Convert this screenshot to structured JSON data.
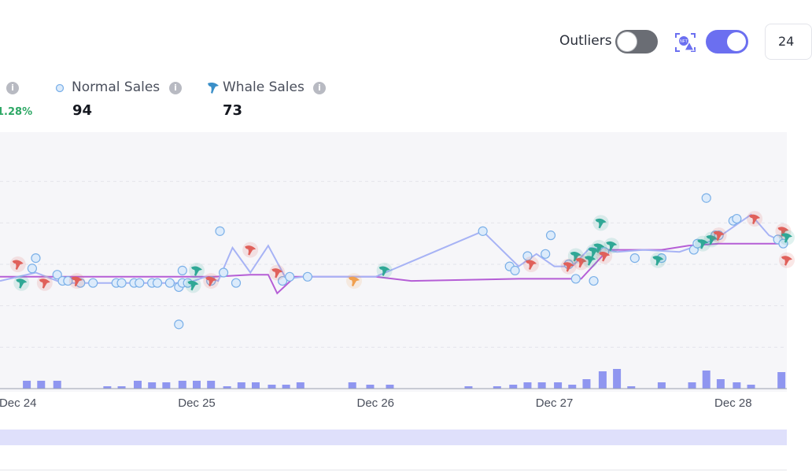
{
  "controls": {
    "outliers_label": "Outliers",
    "outliers_enabled": false,
    "nft_toggle_enabled": true,
    "range_label": "24"
  },
  "stats": {
    "change_pct": "1.28%",
    "normal_sales_label": "Normal Sales",
    "normal_sales_value": "94",
    "whale_sales_label": "Whale Sales",
    "whale_sales_value": "73",
    "info_glyph": "i"
  },
  "colors": {
    "avg_line": "#a7b3f5",
    "floor_line": "#b55ed6",
    "normal_dot": "#7bb0e8",
    "whale_teal": "#2fa896",
    "whale_red": "#e0605a",
    "whale_orange": "#f0a050",
    "volume_bar": "#8f96f0",
    "accent": "#6b6ff0",
    "positive": "#2fa866"
  },
  "chart_data": {
    "type": "scatter",
    "x_ticks": [
      "Dec 24",
      "Dec 25",
      "Dec 26",
      "Dec 27",
      "Dec 28"
    ],
    "x_domain_days": [
      -0.1,
      4.3
    ],
    "y_domain": [
      0,
      6
    ],
    "grid": true,
    "normal_sales": [
      [
        0.08,
        2.9
      ],
      [
        0.1,
        3.15
      ],
      [
        0.22,
        2.75
      ],
      [
        0.25,
        2.6
      ],
      [
        0.28,
        2.6
      ],
      [
        0.35,
        2.55
      ],
      [
        0.42,
        2.55
      ],
      [
        0.55,
        2.55
      ],
      [
        0.58,
        2.55
      ],
      [
        0.65,
        2.55
      ],
      [
        0.68,
        2.55
      ],
      [
        0.75,
        2.55
      ],
      [
        0.78,
        2.55
      ],
      [
        0.85,
        2.55
      ],
      [
        0.9,
        2.45
      ],
      [
        0.92,
        2.55
      ],
      [
        0.95,
        2.55
      ],
      [
        0.9,
        1.55
      ],
      [
        0.92,
        2.85
      ],
      [
        1.08,
        2.6
      ],
      [
        1.13,
        3.8
      ],
      [
        1.15,
        2.8
      ],
      [
        1.22,
        2.55
      ],
      [
        1.48,
        2.6
      ],
      [
        1.52,
        2.7
      ],
      [
        1.62,
        2.7
      ],
      [
        2.6,
        3.8
      ],
      [
        2.75,
        2.95
      ],
      [
        2.78,
        2.85
      ],
      [
        2.85,
        3.2
      ],
      [
        2.95,
        3.25
      ],
      [
        2.98,
        3.7
      ],
      [
        3.08,
        3.0
      ],
      [
        3.12,
        2.65
      ],
      [
        3.22,
        2.6
      ],
      [
        3.28,
        3.3
      ],
      [
        3.45,
        3.15
      ],
      [
        3.6,
        3.15
      ],
      [
        3.78,
        3.35
      ],
      [
        3.8,
        3.5
      ],
      [
        3.85,
        4.6
      ],
      [
        3.9,
        3.7
      ],
      [
        3.92,
        3.7
      ],
      [
        4.0,
        4.05
      ],
      [
        4.02,
        4.1
      ],
      [
        4.25,
        3.6
      ],
      [
        4.28,
        3.5
      ]
    ],
    "whale_sales": [
      [
        0.0,
        3.0,
        "red"
      ],
      [
        0.02,
        2.55,
        "teal"
      ],
      [
        0.15,
        2.55,
        "red"
      ],
      [
        0.33,
        2.6,
        "red"
      ],
      [
        0.98,
        2.5,
        "teal"
      ],
      [
        1.0,
        2.85,
        "teal"
      ],
      [
        1.08,
        2.6,
        "red"
      ],
      [
        1.3,
        3.35,
        "red"
      ],
      [
        1.45,
        2.8,
        "red"
      ],
      [
        1.88,
        2.6,
        "orange"
      ],
      [
        2.05,
        2.85,
        "teal"
      ],
      [
        2.87,
        3.0,
        "red"
      ],
      [
        3.08,
        2.95,
        "red"
      ],
      [
        3.12,
        3.2,
        "teal"
      ],
      [
        3.15,
        3.05,
        "red"
      ],
      [
        3.2,
        3.1,
        "teal"
      ],
      [
        3.22,
        3.3,
        "teal"
      ],
      [
        3.25,
        3.4,
        "teal"
      ],
      [
        3.26,
        4.0,
        "teal"
      ],
      [
        3.28,
        3.2,
        "red"
      ],
      [
        3.32,
        3.45,
        "teal"
      ],
      [
        3.58,
        3.1,
        "teal"
      ],
      [
        3.83,
        3.5,
        "teal"
      ],
      [
        3.88,
        3.6,
        "teal"
      ],
      [
        3.92,
        3.7,
        "red"
      ],
      [
        4.12,
        4.1,
        "red"
      ],
      [
        4.28,
        3.8,
        "red"
      ],
      [
        4.3,
        3.65,
        "teal"
      ],
      [
        4.3,
        3.1,
        "red"
      ]
    ],
    "average_line": [
      [
        -0.1,
        2.6
      ],
      [
        0.1,
        2.8
      ],
      [
        0.25,
        2.55
      ],
      [
        0.95,
        2.55
      ],
      [
        1.05,
        2.7
      ],
      [
        1.12,
        2.6
      ],
      [
        1.2,
        3.4
      ],
      [
        1.3,
        2.8
      ],
      [
        1.4,
        3.45
      ],
      [
        1.5,
        2.65
      ],
      [
        1.6,
        2.7
      ],
      [
        2.0,
        2.7
      ],
      [
        2.6,
        3.8
      ],
      [
        2.8,
        2.95
      ],
      [
        2.9,
        3.25
      ],
      [
        3.0,
        2.95
      ],
      [
        3.1,
        2.95
      ],
      [
        3.2,
        3.4
      ],
      [
        3.35,
        3.3
      ],
      [
        3.5,
        3.35
      ],
      [
        3.7,
        3.3
      ],
      [
        3.9,
        3.6
      ],
      [
        4.1,
        4.2
      ],
      [
        4.2,
        3.7
      ],
      [
        4.3,
        3.5
      ]
    ],
    "floor_line": [
      [
        -0.1,
        2.7
      ],
      [
        1.1,
        2.7
      ],
      [
        1.3,
        2.75
      ],
      [
        1.4,
        2.75
      ],
      [
        1.45,
        2.3
      ],
      [
        1.55,
        2.7
      ],
      [
        2.0,
        2.7
      ],
      [
        2.2,
        2.6
      ],
      [
        2.8,
        2.65
      ],
      [
        3.15,
        2.65
      ],
      [
        3.3,
        3.35
      ],
      [
        3.6,
        3.35
      ],
      [
        3.75,
        3.45
      ],
      [
        3.92,
        3.5
      ],
      [
        4.3,
        3.5
      ]
    ],
    "volume": [
      [
        0.05,
        1
      ],
      [
        0.13,
        1
      ],
      [
        0.22,
        1
      ],
      [
        0.5,
        0.3
      ],
      [
        0.58,
        0.3
      ],
      [
        0.67,
        1
      ],
      [
        0.75,
        0.8
      ],
      [
        0.83,
        0.8
      ],
      [
        0.92,
        1
      ],
      [
        1.0,
        1
      ],
      [
        1.08,
        1
      ],
      [
        1.17,
        0.3
      ],
      [
        1.25,
        0.8
      ],
      [
        1.33,
        0.8
      ],
      [
        1.42,
        0.5
      ],
      [
        1.5,
        0.5
      ],
      [
        1.58,
        0.8
      ],
      [
        1.87,
        0.8
      ],
      [
        1.97,
        0.5
      ],
      [
        2.08,
        0.5
      ],
      [
        2.52,
        0.3
      ],
      [
        2.68,
        0.3
      ],
      [
        2.77,
        0.5
      ],
      [
        2.85,
        0.8
      ],
      [
        2.93,
        0.8
      ],
      [
        3.02,
        0.8
      ],
      [
        3.1,
        0.5
      ],
      [
        3.18,
        1.2
      ],
      [
        3.27,
        2.2
      ],
      [
        3.35,
        2.5
      ],
      [
        3.43,
        0.3
      ],
      [
        3.6,
        0.8
      ],
      [
        3.77,
        0.8
      ],
      [
        3.85,
        2.3
      ],
      [
        3.93,
        1.2
      ],
      [
        4.02,
        0.8
      ],
      [
        4.1,
        0.5
      ],
      [
        4.27,
        2.1
      ]
    ]
  }
}
